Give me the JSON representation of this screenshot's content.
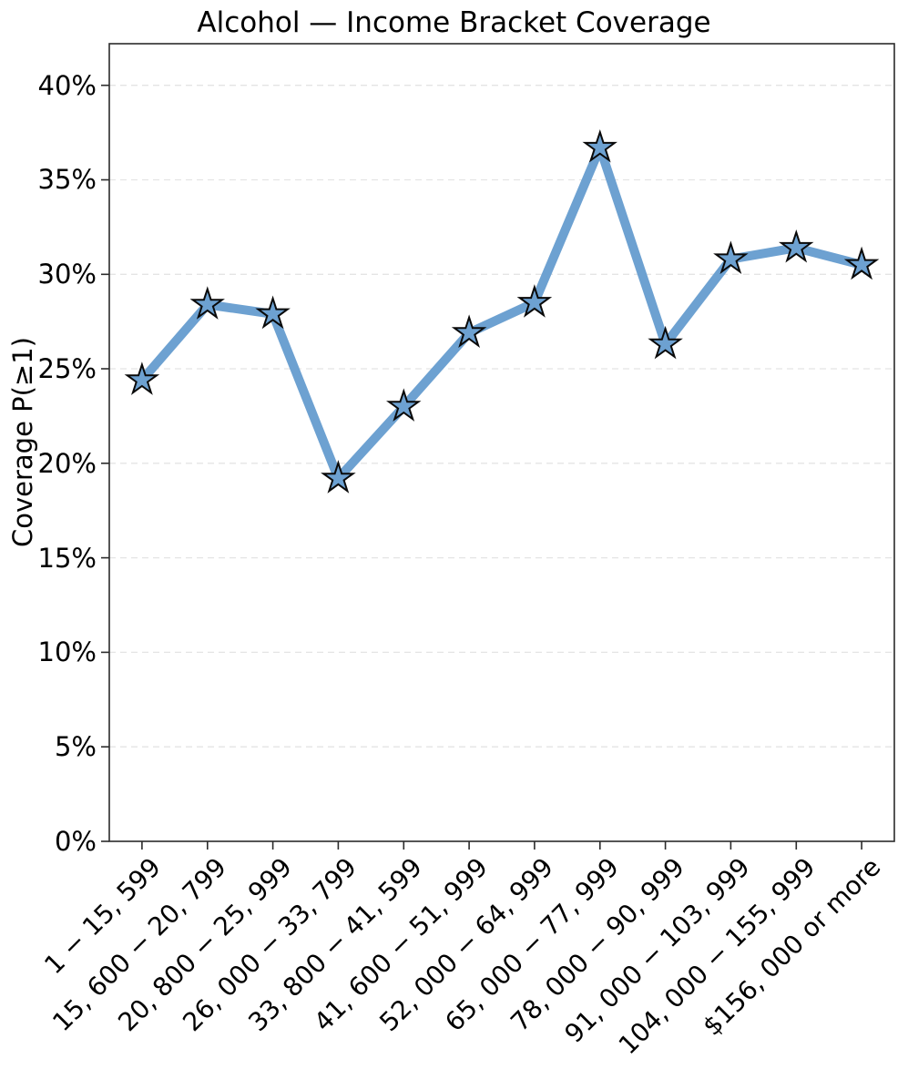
{
  "chart_data": {
    "type": "line",
    "title": "Alcohol — Income Bracket Coverage",
    "xlabel": "",
    "ylabel": "Coverage P(≥1)",
    "categories": [
      "1 − 15, 599",
      "15, 600 − 20, 799",
      "20, 800 − 25, 999",
      "26, 000 − 33, 799",
      "33, 800 − 41, 599",
      "41, 600 − 51, 999",
      "52, 000 − 64, 999",
      "65, 000 − 77, 999",
      "78, 000 − 90, 999",
      "91, 000 − 103, 999",
      "104, 000 − 155, 999",
      "$156, 000 or more"
    ],
    "values": [
      24.4,
      28.4,
      27.9,
      19.2,
      23.0,
      26.9,
      28.5,
      36.7,
      26.3,
      30.8,
      31.4,
      30.5
    ],
    "unit": "%",
    "ytick_values": [
      0,
      5,
      10,
      15,
      20,
      25,
      30,
      35,
      40
    ],
    "ytick_labels": [
      "0%",
      "5%",
      "10%",
      "15%",
      "20%",
      "25%",
      "30%",
      "35%",
      "40%"
    ],
    "ylim": [
      0,
      42.2
    ],
    "xtick_rotation_deg": 45,
    "grid": "horizontal-dashed",
    "legend_position": "none",
    "marker": "star",
    "colors": {
      "line": "#6da1d1",
      "marker_fill": "#6da1d1",
      "marker_edge": "#0a0a0a",
      "grid": "#e4e4e4",
      "spine": "#2b2b2b",
      "tick": "#2b2b2b",
      "text": "#000000"
    }
  }
}
